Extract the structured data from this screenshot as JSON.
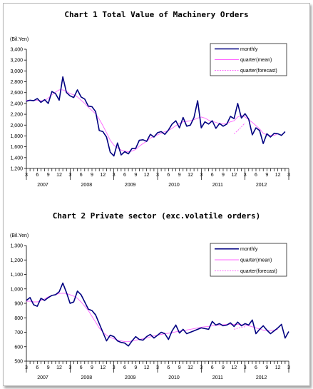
{
  "chart_data": [
    {
      "type": "line",
      "title": "Chart 1 Total Value of Machinery Orders",
      "ylabel": "(Bil.Yen)",
      "ylim": [
        1200,
        3400
      ],
      "yticks": [
        "1,200",
        "1,400",
        "1,600",
        "1,800",
        "2,000",
        "2,200",
        "2,400",
        "2,600",
        "2,800",
        "3,000",
        "3,200",
        "3,400"
      ],
      "month_ticks": [
        "3",
        "6",
        "9",
        "12",
        "3",
        "6",
        "9",
        "12",
        "3",
        "6",
        "9",
        "12",
        "3",
        "6",
        "9",
        "12",
        "3",
        "6",
        "9",
        "12",
        "3",
        "6",
        "9",
        "12",
        "3"
      ],
      "year_labels": [
        "2007",
        "2008",
        "2009",
        "2010",
        "2011",
        "2012"
      ],
      "legend": [
        "monthly",
        "quarter(mean)",
        "quarter(forecast)"
      ],
      "legend_position": "top-right",
      "colors": {
        "monthly": "#000080",
        "quarter_mean": "#ff66ff",
        "quarter_forecast": "#ff66ff"
      },
      "series": [
        {
          "name": "monthly",
          "x_start": "2007-03",
          "values": [
            2440,
            2460,
            2450,
            2490,
            2420,
            2470,
            2400,
            2620,
            2580,
            2460,
            2890,
            2600,
            2540,
            2510,
            2650,
            2520,
            2480,
            2350,
            2340,
            2250,
            1900,
            1880,
            1780,
            1500,
            1430,
            1670,
            1450,
            1510,
            1470,
            1570,
            1570,
            1720,
            1730,
            1700,
            1830,
            1780,
            1860,
            1880,
            1830,
            1910,
            2020,
            2080,
            1950,
            2140,
            1980,
            2000,
            2140,
            2450,
            1950,
            2060,
            2020,
            2080,
            1940,
            2030,
            1980,
            2020,
            2160,
            2120,
            2400,
            2130,
            2210,
            2110,
            1820,
            1950,
            1900,
            1660,
            1840,
            1780,
            1850,
            1840,
            1810,
            1880
          ]
        },
        {
          "name": "quarter(mean)",
          "x_start": "2007-03",
          "values": [
            2460,
            2460,
            2460,
            2460,
            2450,
            2450,
            2500,
            2560,
            2610,
            2650,
            2650,
            2620,
            2580,
            2560,
            2520,
            2460,
            2400,
            2330,
            2270,
            2210,
            2110,
            1990,
            1860,
            1720,
            1630,
            1580,
            1540,
            1520,
            1510,
            1520,
            1550,
            1610,
            1660,
            1700,
            1760,
            1790,
            1820,
            1850,
            1880,
            1900,
            1940,
            1990,
            2030,
            2060,
            2070,
            2080,
            2100,
            2130,
            2150,
            2130,
            2090,
            2070,
            2050,
            2030,
            2020,
            2030,
            2060,
            2080,
            2150,
            2180,
            2150,
            2100,
            2050,
            1990,
            1930,
            1850,
            1820,
            1810,
            1810,
            1840
          ]
        },
        {
          "name": "quarter(forecast)",
          "x_start": "2011-12",
          "values": [
            1840,
            1900,
            1970,
            2040
          ]
        }
      ]
    },
    {
      "type": "line",
      "title": "Chart 2 Private sector (exc.volatile orders)",
      "ylabel": "(Bil.Yen)",
      "ylim": [
        500,
        1300
      ],
      "yticks": [
        "500",
        "600",
        "700",
        "800",
        "900",
        "1,000",
        "1,100",
        "1,200",
        "1,300"
      ],
      "month_ticks": [
        "3",
        "6",
        "9",
        "12",
        "3",
        "6",
        "9",
        "12",
        "3",
        "6",
        "9",
        "12",
        "3",
        "6",
        "9",
        "12",
        "3",
        "6",
        "9",
        "12",
        "3",
        "6",
        "9",
        "12",
        "3"
      ],
      "year_labels": [
        "2007",
        "2008",
        "2009",
        "2010",
        "2011",
        "2012"
      ],
      "legend": [
        "monthly",
        "quarter(mean)",
        "quarter(forecast)"
      ],
      "legend_position": "top-right",
      "colors": {
        "monthly": "#000080",
        "quarter_mean": "#ff66ff",
        "quarter_forecast": "#ff66ff"
      },
      "series": [
        {
          "name": "monthly",
          "x_start": "2007-03",
          "values": [
            920,
            940,
            890,
            880,
            935,
            920,
            940,
            955,
            960,
            980,
            1040,
            975,
            900,
            910,
            985,
            960,
            910,
            860,
            850,
            820,
            760,
            700,
            640,
            680,
            670,
            640,
            630,
            625,
            605,
            640,
            670,
            650,
            645,
            670,
            685,
            660,
            680,
            700,
            690,
            650,
            710,
            750,
            695,
            720,
            690,
            700,
            710,
            720,
            730,
            725,
            720,
            775,
            750,
            760,
            745,
            750,
            765,
            740,
            770,
            745,
            760,
            750,
            785,
            690,
            720,
            745,
            715,
            690,
            710,
            730,
            755,
            660,
            705
          ]
        },
        {
          "name": "quarter(mean)",
          "x_start": "2007-03",
          "values": [
            915,
            915,
            910,
            910,
            920,
            930,
            945,
            955,
            960,
            968,
            970,
            968,
            960,
            950,
            935,
            910,
            880,
            850,
            810,
            770,
            730,
            700,
            680,
            665,
            655,
            645,
            640,
            635,
            635,
            640,
            645,
            650,
            655,
            660,
            668,
            675,
            680,
            685,
            690,
            693,
            698,
            703,
            708,
            712,
            716,
            720,
            725,
            730,
            735,
            738,
            740,
            745,
            748,
            750,
            752,
            754,
            756,
            755,
            755,
            753,
            750,
            745,
            738,
            730,
            722,
            715,
            712,
            712,
            715,
            720
          ]
        },
        {
          "name": "quarter(forecast)",
          "x_start": "2011-12",
          "values": [
            720,
            728,
            735,
            738
          ]
        }
      ]
    }
  ]
}
